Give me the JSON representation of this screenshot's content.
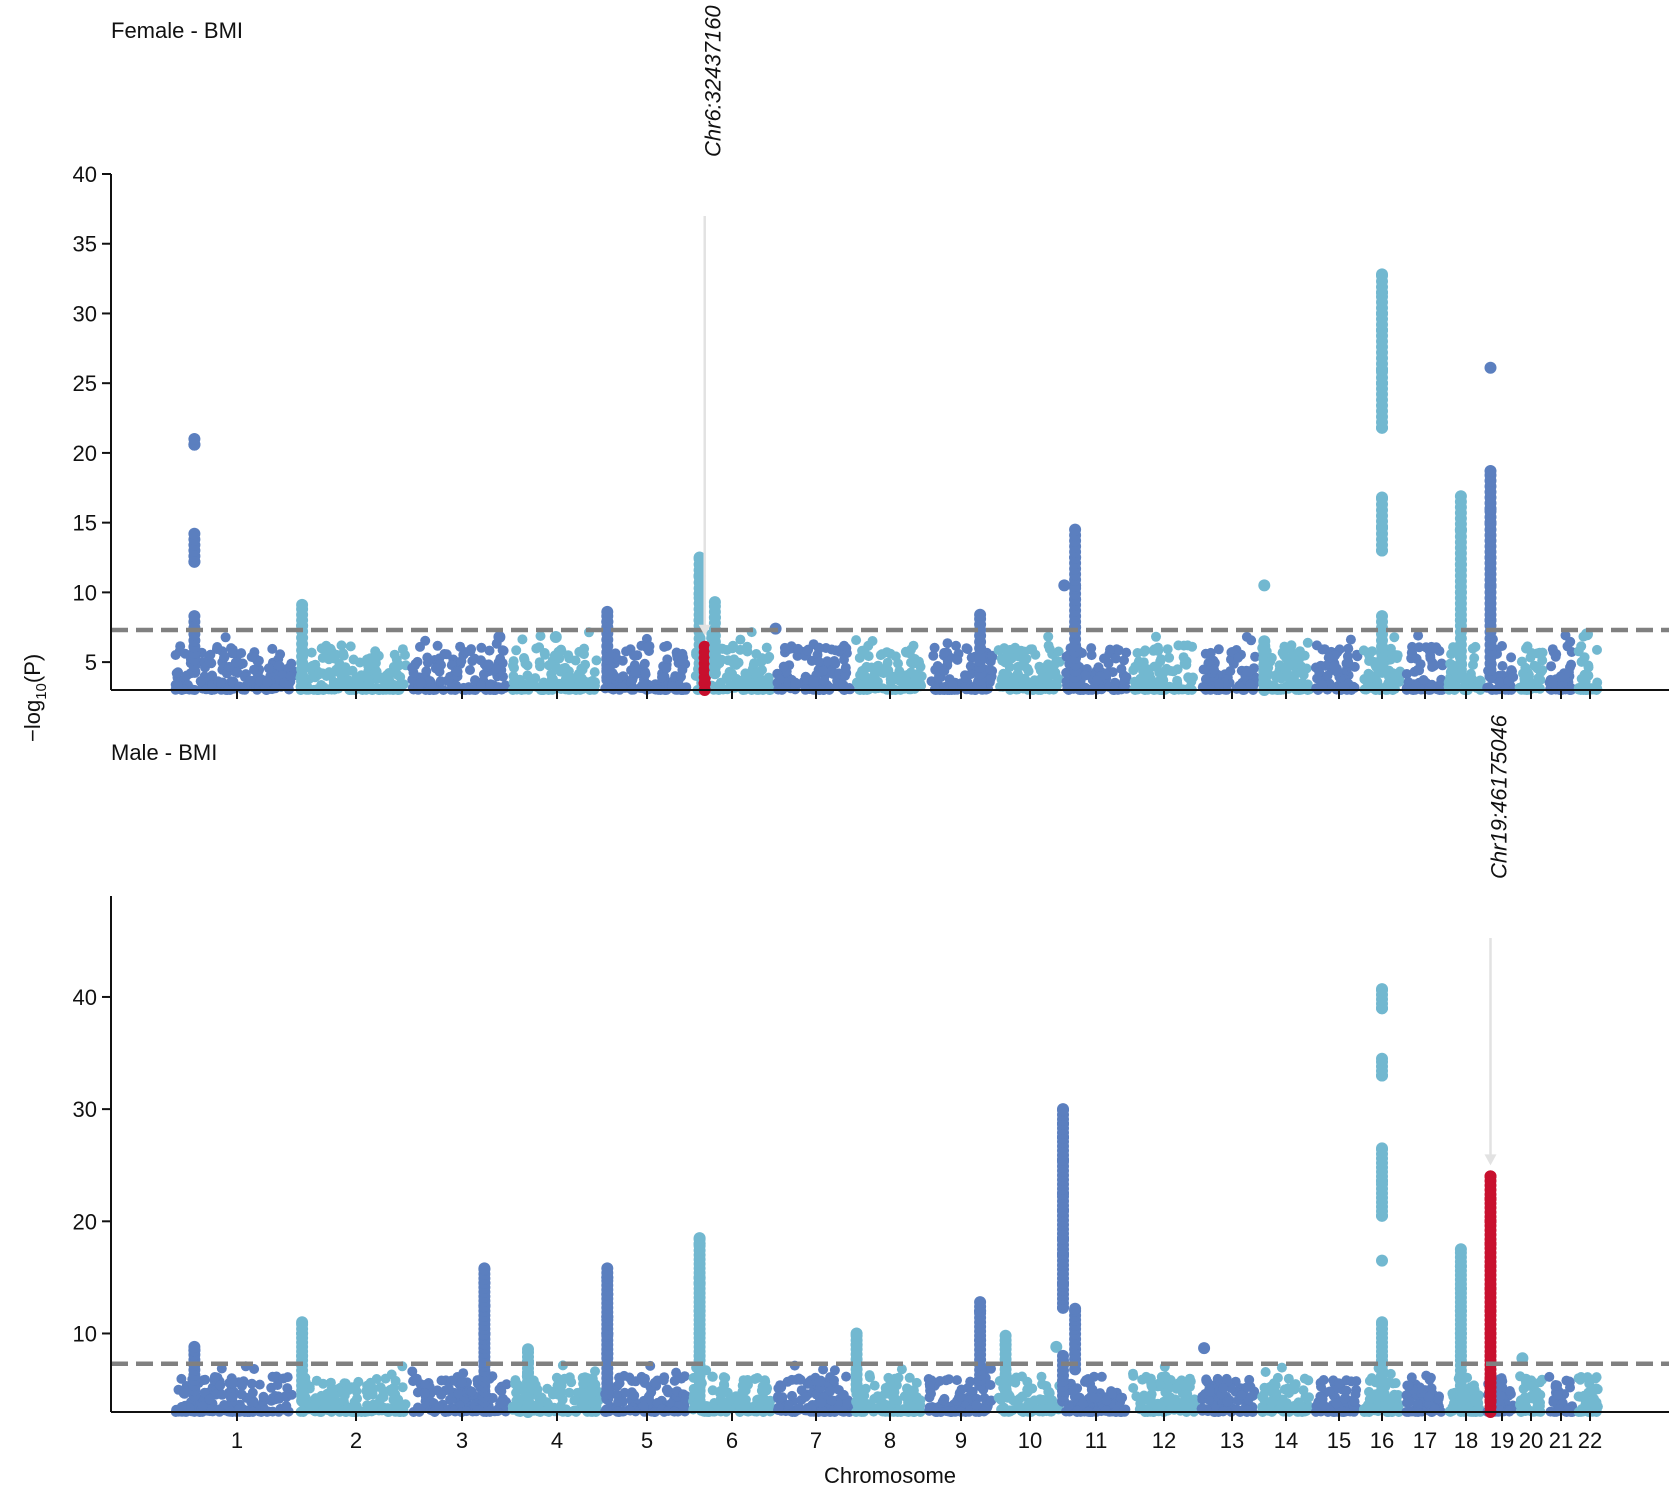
{
  "chart_data": [
    {
      "type": "scatter",
      "subtype": "manhattan",
      "title": "Female - BMI",
      "xlabel": "",
      "ylabel": "−log10(P)",
      "ylim": [
        3,
        40
      ],
      "yticks": [
        5,
        10,
        15,
        20,
        25,
        30,
        35,
        40
      ],
      "threshold": 7.3,
      "colors": {
        "odd": "#5b7fbf",
        "even": "#72b8d0",
        "highlight": "#c8102e",
        "threshold": "#808080"
      },
      "annotation": {
        "label": "Chr6:32437160",
        "chrom": 6,
        "value": 6.1
      },
      "peaks": [
        {
          "chrom": 1,
          "pos": 0.18,
          "values": [
            8.3,
            12.2,
            14.2,
            20.6,
            21.0
          ]
        },
        {
          "chrom": 2,
          "pos": 0.05,
          "values": [
            7.6,
            9.1
          ]
        },
        {
          "chrom": 3,
          "pos": 0.9,
          "values": [
            6.8
          ]
        },
        {
          "chrom": 4,
          "pos": 0.5,
          "values": [
            6.8
          ]
        },
        {
          "chrom": 5,
          "pos": 0.06,
          "values": [
            7.9,
            8.6
          ]
        },
        {
          "chrom": 6,
          "pos": 0.12,
          "values": [
            8.0,
            9.9,
            11.2,
            12.5
          ]
        },
        {
          "chrom": 6,
          "pos": 0.18,
          "values": [
            3.5,
            4.5,
            5.3,
            6.1
          ],
          "highlight": true
        },
        {
          "chrom": 6,
          "pos": 0.3,
          "values": [
            8.2,
            9.3
          ]
        },
        {
          "chrom": 7,
          "pos": 0.02,
          "values": [
            7.4
          ]
        },
        {
          "chrom": 9,
          "pos": 0.78,
          "values": [
            7.3,
            8.4
          ]
        },
        {
          "chrom": 11,
          "pos": 0.18,
          "values": [
            7.5,
            9.5,
            10.5,
            12.5,
            14.5
          ]
        },
        {
          "chrom": 11,
          "pos": 0.02,
          "values": [
            10.5
          ]
        },
        {
          "chrom": 14,
          "pos": 0.1,
          "values": [
            6.5,
            10.5
          ]
        },
        {
          "chrom": 16,
          "pos": 0.5,
          "values": [
            8.3,
            13.0,
            14.7,
            16.8,
            21.8,
            25.0,
            26.0,
            28.8,
            30.0,
            31.5,
            32.8
          ]
        },
        {
          "chrom": 18,
          "pos": 0.4,
          "values": [
            8.0,
            10.0,
            12.0,
            14.5,
            16.9
          ]
        },
        {
          "chrom": 19,
          "pos": 0.2,
          "values": [
            8.0,
            10.5,
            12.5,
            15.0,
            16.0,
            18.7
          ]
        },
        {
          "chrom": 19,
          "pos": 0.2,
          "values": [
            26.1
          ]
        },
        {
          "chrom": 22,
          "pos": 0.45,
          "values": [
            7.0
          ]
        }
      ]
    },
    {
      "type": "scatter",
      "subtype": "manhattan",
      "title": "Male - BMI",
      "xlabel": "Chromosome",
      "ylabel": "−log10(P)",
      "ylim": [
        3,
        49
      ],
      "yticks": [
        10,
        20,
        30,
        40
      ],
      "threshold": 7.3,
      "colors": {
        "odd": "#5b7fbf",
        "even": "#72b8d0",
        "highlight": "#c8102e",
        "threshold": "#808080"
      },
      "annotation": {
        "label": "Chr19:46175046",
        "chrom": 19,
        "value": 24.0
      },
      "peaks": [
        {
          "chrom": 1,
          "pos": 0.18,
          "values": [
            8.5,
            8.8
          ]
        },
        {
          "chrom": 2,
          "pos": 0.05,
          "values": [
            8.0,
            10.0,
            11.0
          ]
        },
        {
          "chrom": 3,
          "pos": 0.75,
          "values": [
            7.5,
            10.0,
            12.5,
            14.5,
            15.8
          ]
        },
        {
          "chrom": 4,
          "pos": 0.2,
          "values": [
            6.5,
            7.5,
            8.6
          ]
        },
        {
          "chrom": 5,
          "pos": 0.06,
          "values": [
            8.2,
            10.0,
            11.5,
            13.5,
            15.0,
            15.8
          ]
        },
        {
          "chrom": 6,
          "pos": 0.12,
          "values": [
            8.0,
            10.0,
            12.0,
            14.5,
            15.0,
            18.0,
            18.5
          ]
        },
        {
          "chrom": 8,
          "pos": 0.05,
          "values": [
            9.0,
            10.0
          ]
        },
        {
          "chrom": 9,
          "pos": 0.78,
          "values": [
            9.4,
            12.0,
            12.8
          ]
        },
        {
          "chrom": 10,
          "pos": 0.9,
          "values": [
            8.8
          ]
        },
        {
          "chrom": 10,
          "pos": 0.15,
          "values": [
            9.0,
            9.8
          ]
        },
        {
          "chrom": 11,
          "pos": 0.18,
          "values": [
            10.8,
            12.2
          ]
        },
        {
          "chrom": 11,
          "pos": 0.0,
          "values": [
            8.0,
            12.3,
            14.5,
            17.1,
            18.5,
            21.0,
            22.5,
            25.5,
            27.5,
            28.7,
            30.0
          ]
        },
        {
          "chrom": 13,
          "pos": 0.1,
          "values": [
            8.7
          ]
        },
        {
          "chrom": 16,
          "pos": 0.5,
          "values": [
            8.0,
            11.0,
            16.5,
            20.5,
            23.6,
            26.5,
            33.0,
            34.5,
            39.0,
            40.7
          ]
        },
        {
          "chrom": 18,
          "pos": 0.4,
          "values": [
            8.0,
            10.0,
            12.0,
            14.0,
            16.0,
            17.5
          ]
        },
        {
          "chrom": 19,
          "pos": 0.2,
          "values": [
            4.0,
            6.0,
            8.0,
            10.0,
            12.0,
            14.0,
            16.0,
            18.0,
            20.0,
            22.0,
            24.0
          ],
          "highlight": true
        },
        {
          "chrom": 20,
          "pos": 0.2,
          "values": [
            7.8
          ]
        }
      ]
    }
  ],
  "chromosome_labels": [
    "1",
    "2",
    "3",
    "4",
    "5",
    "6",
    "7",
    "8",
    "9",
    "10",
    "11",
    "12",
    "13",
    "14",
    "15",
    "16",
    "17",
    "18",
    "19",
    "20",
    "21",
    "22"
  ],
  "shared_ylabel_main": "−log",
  "shared_ylabel_sub": "10",
  "shared_ylabel_tail": "(P)",
  "shared_xlabel": "Chromosome"
}
